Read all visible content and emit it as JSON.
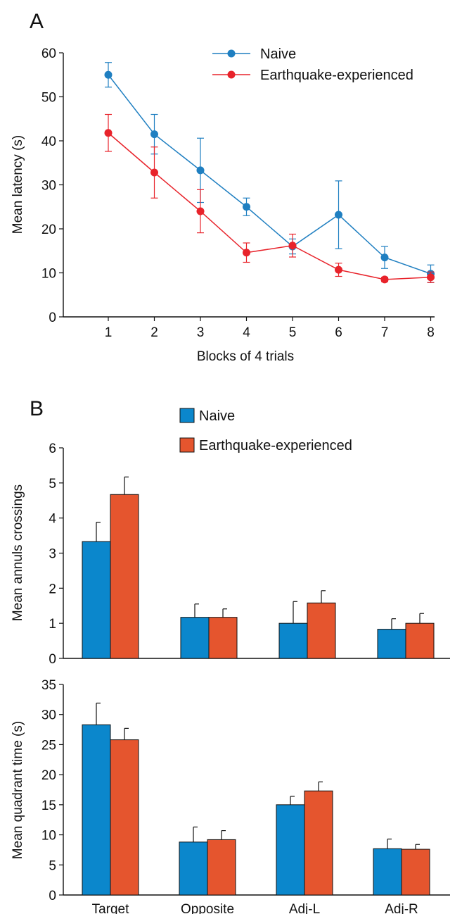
{
  "colors": {
    "naive": "#1f7fc1",
    "earthquake": "#e8232b",
    "naive_bar": "#0b87cc",
    "earthquake_bar": "#e5552e"
  },
  "panels": {
    "a_label": "A",
    "b_label": "B"
  },
  "chart_data": [
    {
      "type": "line",
      "xlabel": "Blocks of 4 trials",
      "ylabel": "Mean latency (s)",
      "ylim": [
        0,
        60
      ],
      "yticks": [
        0,
        10,
        20,
        30,
        40,
        50,
        60
      ],
      "x": [
        1,
        2,
        3,
        4,
        5,
        6,
        7,
        8
      ],
      "legend_position": "top-right",
      "series": [
        {
          "name": "Naive",
          "values": [
            55,
            41.5,
            33.3,
            25,
            16,
            23.2,
            13.5,
            9.8
          ],
          "errors": [
            2.8,
            4.5,
            7.3,
            2,
            1.7,
            7.7,
            2.5,
            2
          ]
        },
        {
          "name": "Earthquake-experienced",
          "values": [
            41.8,
            32.8,
            24,
            14.6,
            16.2,
            10.7,
            8.5,
            9
          ],
          "errors": [
            4.2,
            5.8,
            4.9,
            2.2,
            2.6,
            1.5,
            0.5,
            1.2
          ]
        }
      ]
    },
    {
      "type": "bar",
      "ylabel": "Mean annuls crossings",
      "ylim": [
        0,
        6
      ],
      "yticks": [
        0,
        1,
        2,
        3,
        4,
        5,
        6
      ],
      "categories": [
        "Target",
        "Opposite",
        "Adj-L",
        "Adj-R"
      ],
      "legend_position": "top",
      "series": [
        {
          "name": "Naive",
          "values": [
            3.33,
            1.17,
            1.0,
            0.83
          ],
          "errors": [
            0.55,
            0.38,
            0.62,
            0.3
          ]
        },
        {
          "name": "Earthquake-experienced",
          "values": [
            4.67,
            1.17,
            1.58,
            1.0
          ],
          "errors": [
            0.5,
            0.24,
            0.35,
            0.28
          ]
        }
      ]
    },
    {
      "type": "bar",
      "ylabel": "Mean quadrant time (s)",
      "ylim": [
        0,
        35
      ],
      "yticks": [
        0,
        5,
        10,
        15,
        20,
        25,
        30,
        35
      ],
      "categories": [
        "Target",
        "Opposite",
        "Adj-L",
        "Adj-R"
      ],
      "series": [
        {
          "name": "Naive",
          "values": [
            28.3,
            8.8,
            15,
            7.7
          ],
          "errors": [
            3.6,
            2.5,
            1.4,
            1.6
          ]
        },
        {
          "name": "Earthquake-experienced",
          "values": [
            25.8,
            9.2,
            17.3,
            7.6
          ],
          "errors": [
            1.9,
            1.5,
            1.5,
            0.8
          ]
        }
      ]
    }
  ]
}
